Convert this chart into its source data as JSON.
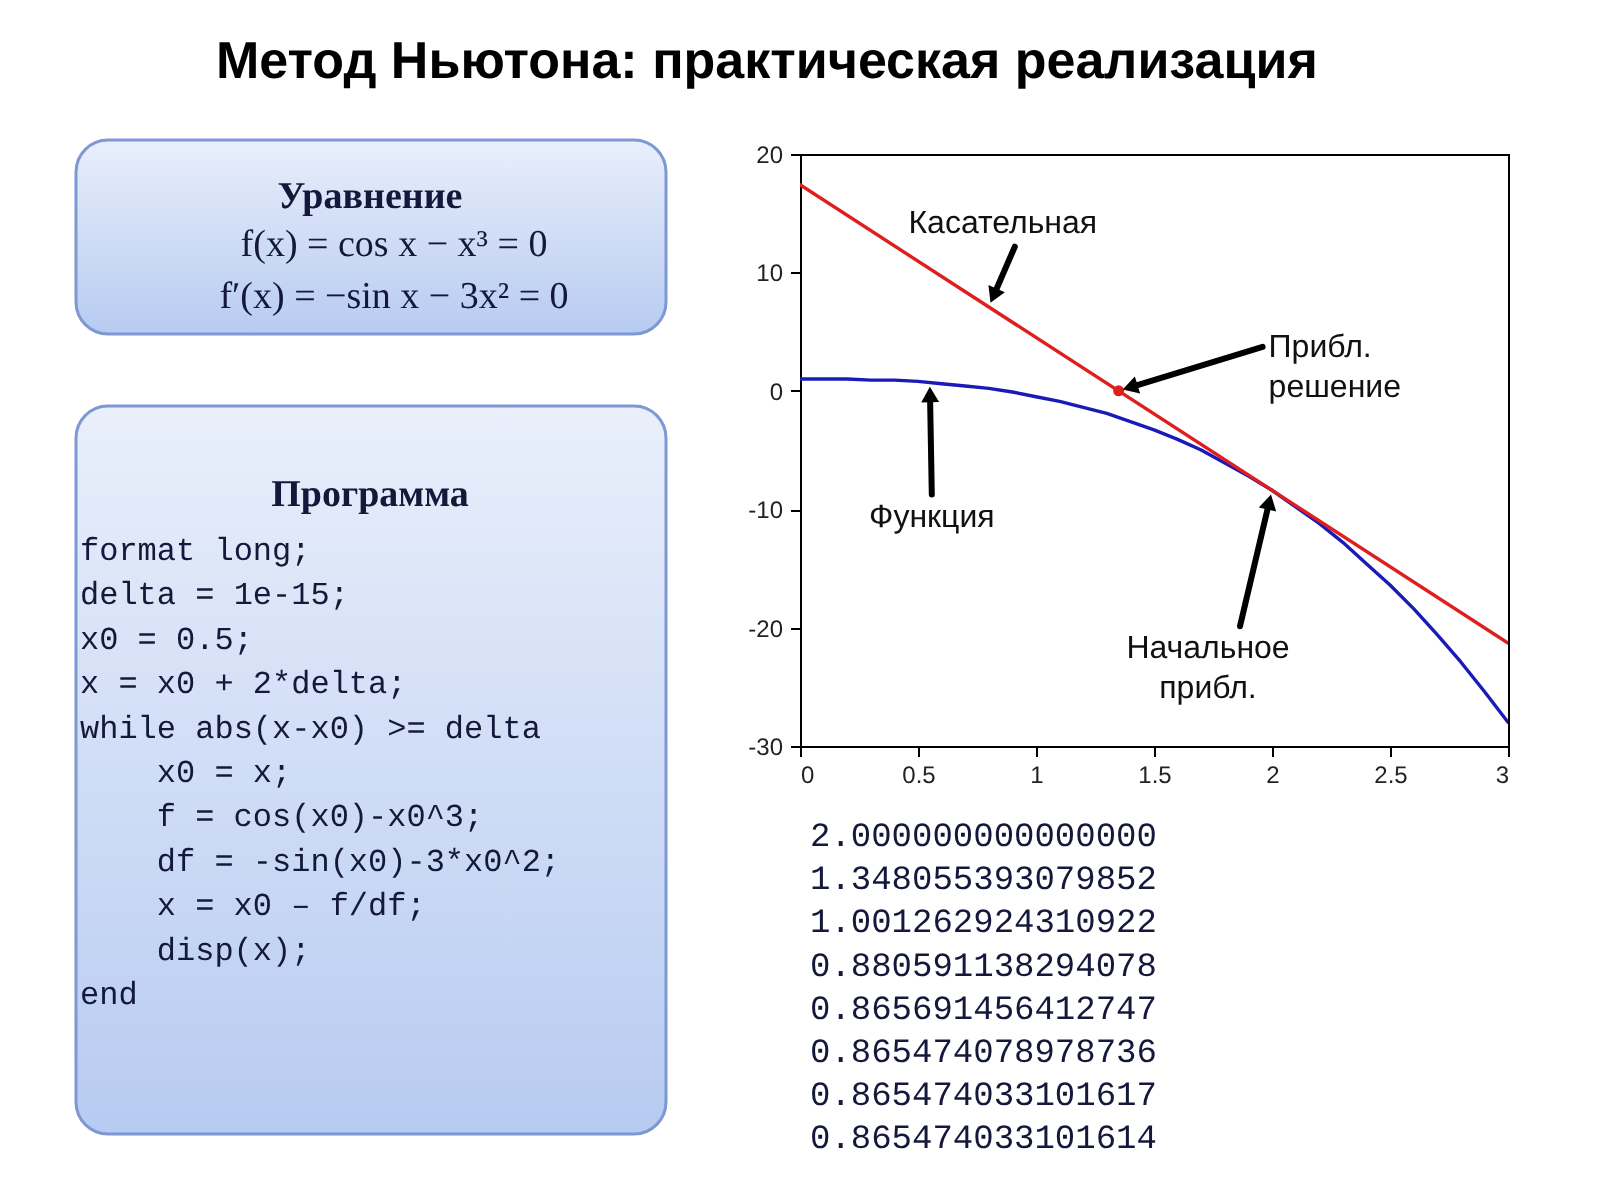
{
  "chart_data": {
    "type": "line",
    "title": "Метод Ньютона: практическая реализация",
    "x": [
      0,
      0.1,
      0.2,
      0.3,
      0.4,
      0.5,
      0.6,
      0.7,
      0.8,
      0.9,
      1.0,
      1.1,
      1.2,
      1.3,
      1.4,
      1.5,
      1.6,
      1.7,
      1.8,
      1.9,
      2.0,
      2.1,
      2.2,
      2.3,
      2.4,
      2.5,
      2.6,
      2.7,
      2.8,
      2.9,
      3.0
    ],
    "series": [
      {
        "color": "#1a1ab8",
        "values": [
          1.0,
          1.0,
          1.0,
          0.9,
          0.9,
          0.8,
          0.6,
          0.4,
          0.2,
          -0.1,
          -0.5,
          -0.9,
          -1.4,
          -1.9,
          -2.6,
          -3.3,
          -4.1,
          -5.0,
          -6.1,
          -7.2,
          -8.4,
          -9.8,
          -11.2,
          -12.8,
          -14.6,
          -16.4,
          -18.4,
          -20.6,
          -22.9,
          -25.4,
          -28.0
        ]
      },
      {
        "color": "#e01e1e",
        "x": [
          0,
          3
        ],
        "values": [
          17.4,
          -21.3
        ]
      },
      {
        "type": "scatter",
        "color": "#e01e1e",
        "marker": "circle",
        "x": [
          1.35
        ],
        "values": [
          0
        ]
      }
    ],
    "xlim": [
      0,
      3
    ],
    "xticks": [
      0,
      0.5,
      1,
      1.5,
      2,
      2.5,
      3
    ],
    "ylim": [
      -30,
      20
    ],
    "yticks": [
      -30,
      -20,
      -10,
      0,
      10,
      20
    ],
    "grid": false,
    "annotations": [
      {
        "text": "Касательная",
        "x": 0.8,
        "y": 7.1
      },
      {
        "text": "Прибл. решение",
        "x": 1.35,
        "y": 0
      },
      {
        "text": "Функция",
        "x": 0.55,
        "y": 0.7
      },
      {
        "text": "Начальное прибл.",
        "x": 2,
        "y": -8.4
      },
      "Уравнение",
      "f(x) = cos x − x³ = 0\nf′(x) = −sin x − 3x² = 0",
      "Программа",
      "format long;\ndelta = 1e-15;\nx0 = 0.5;\nx = x0 + 2*delta;\nwhile abs(x-x0) >= delta\n    x0 = x;\n    f = cos(x0)-x0^3;\n    df = -sin(x0)-3*x0^2;\n    x = x0 – f/df;\n    disp(x);\nend",
      "2.000000000000000\n1.348055393079852\n1.001262924310922\n0.880591138294078\n0.865691456412747\n0.865474078978736\n0.865474033101617\n0.865474033101614"
    ]
  }
}
